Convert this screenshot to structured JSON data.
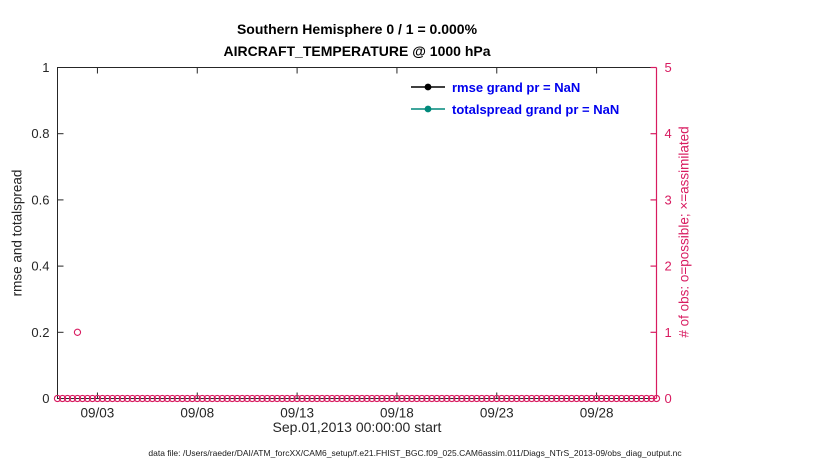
{
  "colors": {
    "axis": "#262626",
    "magenta": "#d81b60",
    "legend_text": "#0000ee",
    "rmse": "#000000",
    "totalspread": "#00897b",
    "background": "#ffffff"
  },
  "title": {
    "line1": "Southern Hemisphere 0 / 1 = 0.000%",
    "line2": "AIRCRAFT_TEMPERATURE @ 1000 hPa"
  },
  "legend": {
    "items": [
      {
        "label": "rmse grand pr = NaN",
        "color": "#000000"
      },
      {
        "label": "totalspread grand pr = NaN",
        "color": "#00897b"
      }
    ]
  },
  "caption": "data file: /Users/raeder/DAI/ATM_forcXX/CAM6_setup/f.e21.FHIST_BGC.f09_025.CAM6assim.011/Diags_NTrS_2013-09/obs_diag_output.nc",
  "chart_data": {
    "type": "scatter",
    "title": "Southern Hemisphere 0 / 1 = 0.000% — AIRCRAFT_TEMPERATURE @ 1000 hPa",
    "xlabel": "Sep.01,2013 00:00:00 start",
    "ylabel_left": "rmse and totalspread",
    "ylabel_right": "# of obs: o=possible; ×=assimilated",
    "grid": false,
    "legend_position": "top-center-inside, no box",
    "x_axis": {
      "start_day": 1,
      "end_day": 31,
      "tick_days": [
        3,
        8,
        13,
        18,
        23,
        28
      ],
      "tick_labels": [
        "09/03",
        "09/08",
        "09/13",
        "09/18",
        "09/23",
        "09/28"
      ]
    },
    "y_left": {
      "lim": [
        0,
        1
      ],
      "ticks": [
        0,
        0.2,
        0.4,
        0.6,
        0.8,
        1
      ],
      "tick_labels": [
        "0",
        "0.2",
        "0.4",
        "0.6",
        "0.8",
        "1"
      ]
    },
    "y_right": {
      "lim": [
        0,
        5
      ],
      "ticks": [
        0,
        1,
        2,
        3,
        4,
        5
      ],
      "tick_labels": [
        "0",
        "1",
        "2",
        "3",
        "4",
        "5"
      ]
    },
    "series": [
      {
        "name": "rmse",
        "axis": "left",
        "color": "#000000",
        "note": "grand pr = NaN, no curve plotted"
      },
      {
        "name": "totalspread",
        "axis": "left",
        "color": "#00897b",
        "note": "grand pr = NaN, no curve plotted"
      },
      {
        "name": "possible_obs",
        "axis": "right",
        "marker": "o",
        "color": "#d81b60",
        "points_nonzero": [
          {
            "day": 2.0,
            "count": 1
          }
        ],
        "zero_run": {
          "start_day": 1.0,
          "end_day": 31.0,
          "step_day": 0.25,
          "count": 0
        }
      }
    ]
  }
}
